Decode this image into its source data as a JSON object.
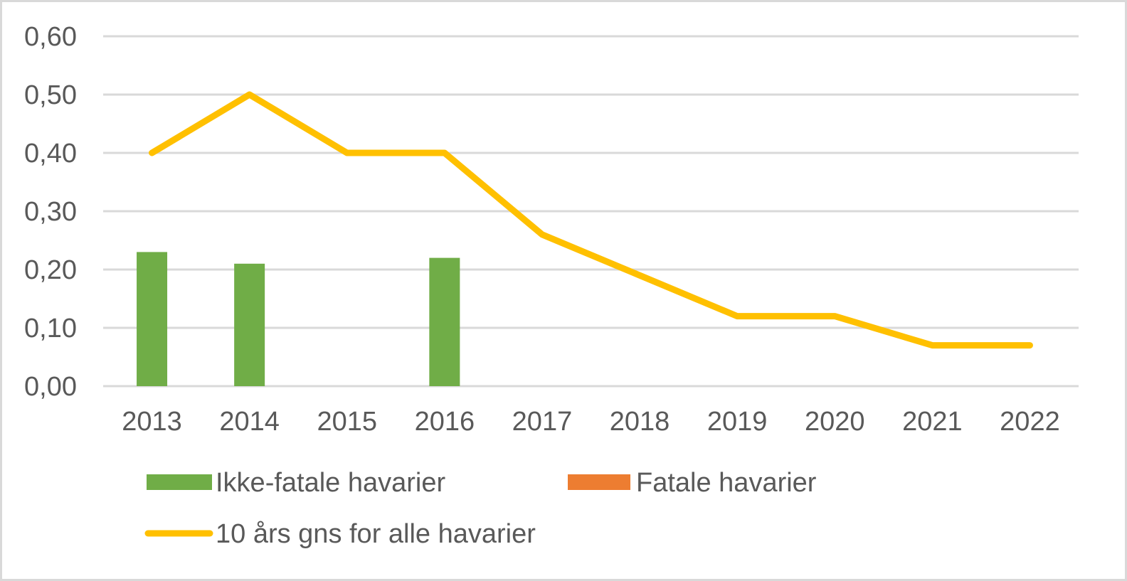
{
  "chart_data": {
    "type": "bar",
    "title": "",
    "xlabel": "",
    "ylabel": "",
    "ylim": [
      0,
      0.6
    ],
    "yticks": [
      "0,00",
      "0,10",
      "0,20",
      "0,30",
      "0,40",
      "0,50",
      "0,60"
    ],
    "grid": true,
    "legend_position": "bottom",
    "categories": [
      "2013",
      "2014",
      "2015",
      "2016",
      "2017",
      "2018",
      "2019",
      "2020",
      "2021",
      "2022"
    ],
    "series": [
      {
        "name": "Ikke-fatale havarier",
        "type": "bar",
        "color": "#70ad47",
        "values": [
          0.23,
          0.21,
          0,
          0.22,
          0,
          0,
          0,
          0,
          0,
          0
        ]
      },
      {
        "name": "Fatale havarier",
        "type": "bar",
        "color": "#ed7d31",
        "values": [
          0,
          0,
          0,
          0,
          0,
          0,
          0,
          0,
          0,
          0
        ]
      },
      {
        "name": "10 års gns for alle havarier",
        "type": "line",
        "color": "#ffc000",
        "values": [
          0.4,
          0.5,
          0.4,
          0.4,
          0.26,
          0.19,
          0.12,
          0.12,
          0.07,
          0.07
        ]
      }
    ]
  },
  "legend": {
    "items": [
      {
        "label": "Ikke-fatale havarier",
        "color": "#70ad47"
      },
      {
        "label": "Fatale havarier",
        "color": "#ed7d31"
      },
      {
        "label": "10 års gns for alle havarier",
        "color": "#ffc000"
      }
    ]
  }
}
